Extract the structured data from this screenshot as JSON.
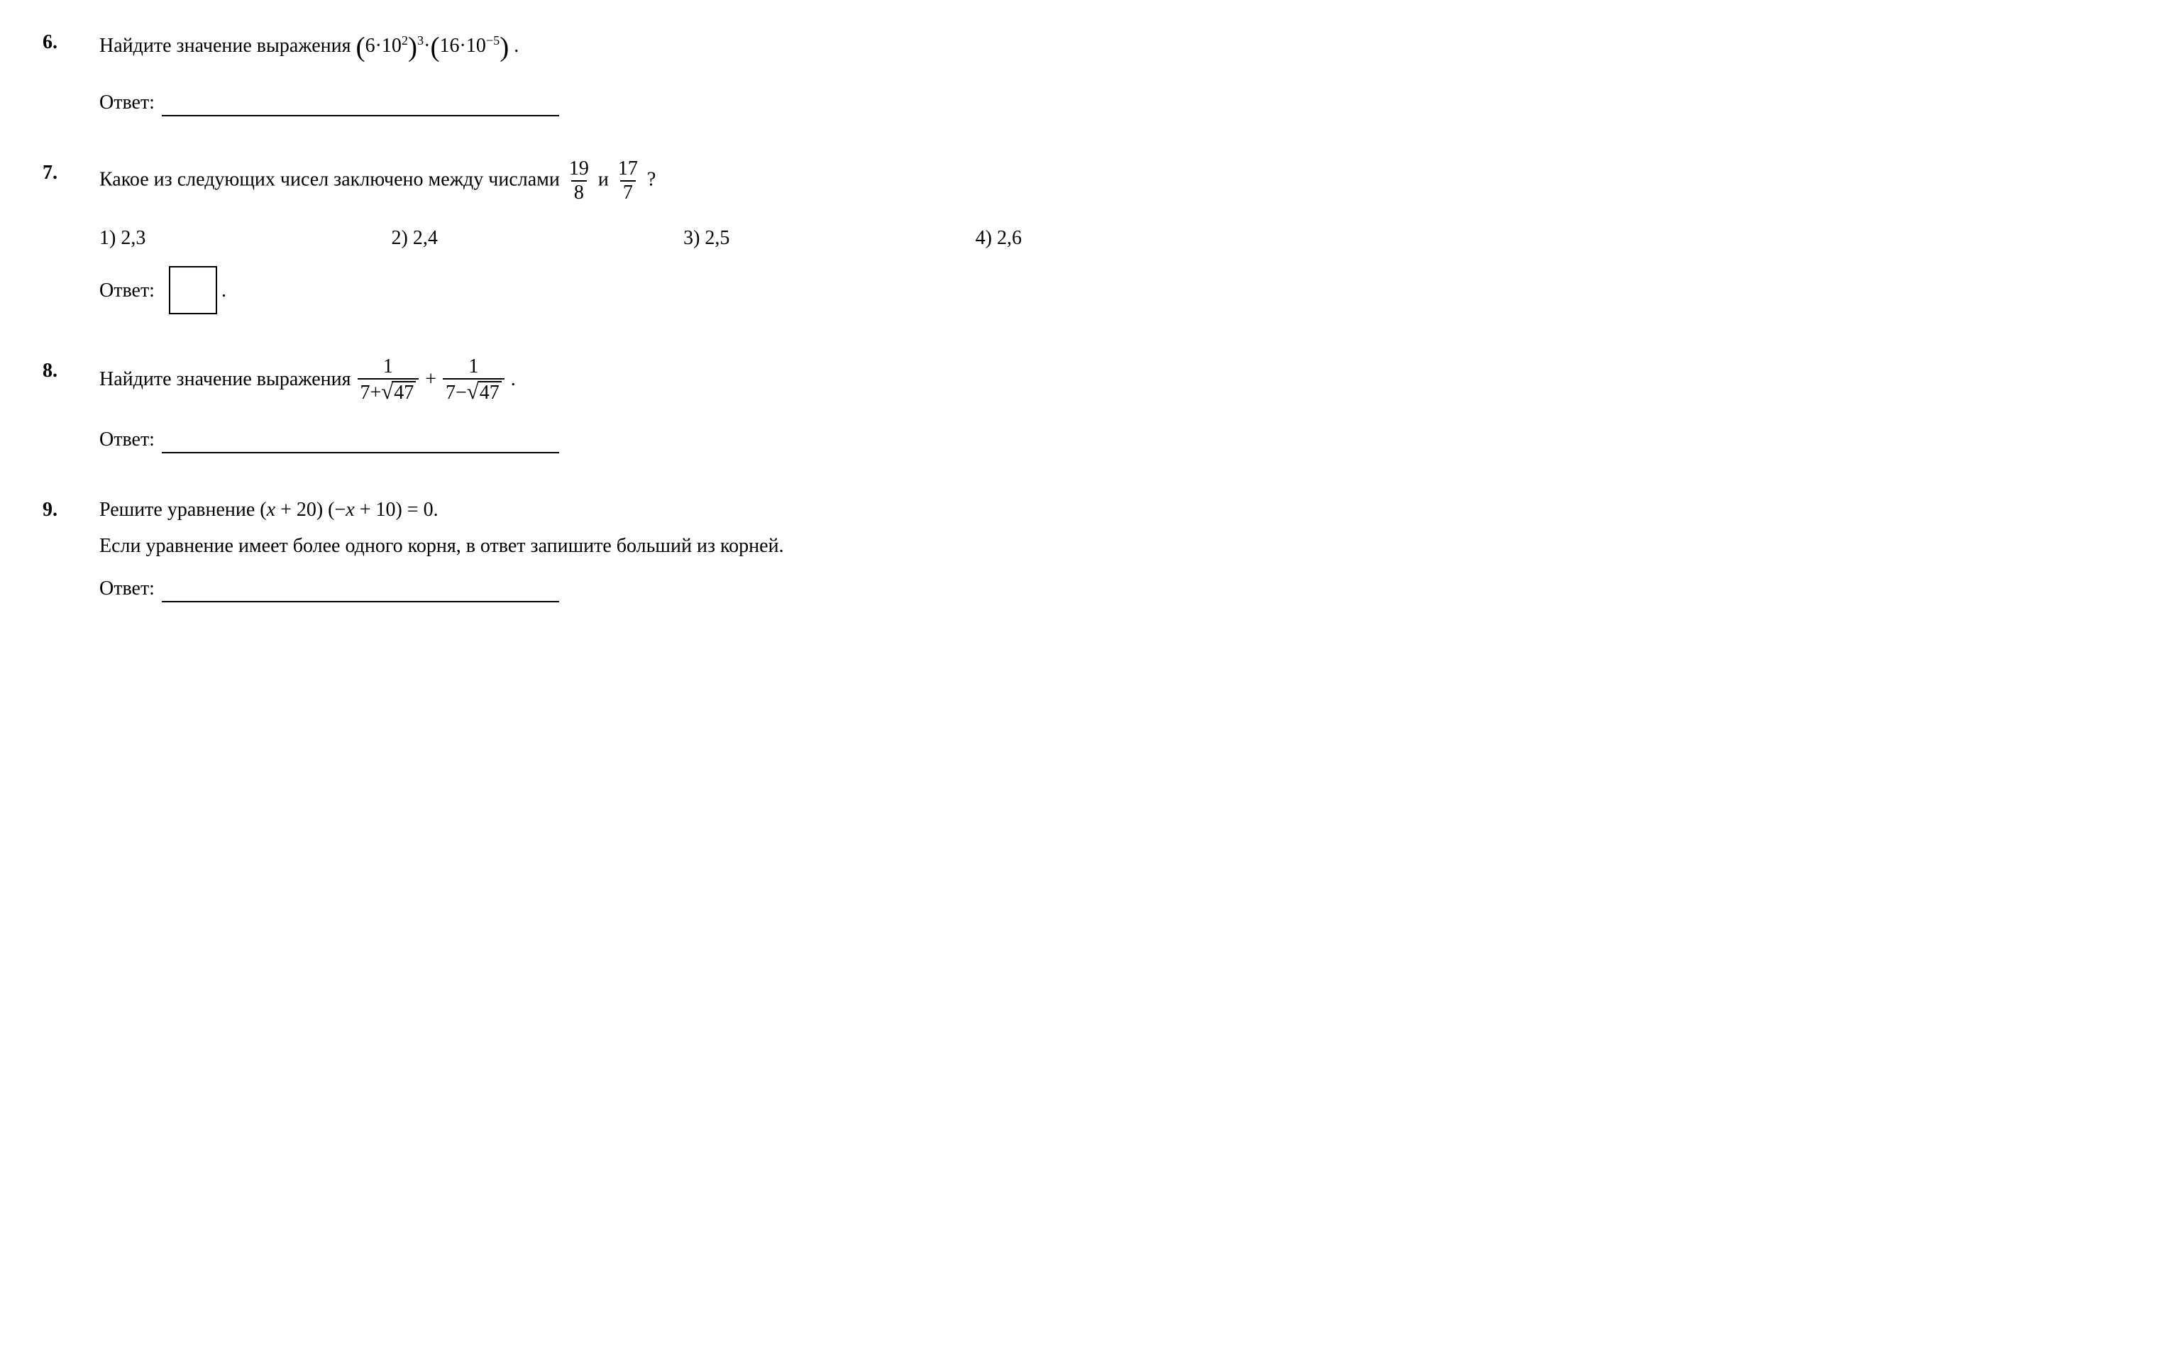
{
  "problems": {
    "p6": {
      "number": "6.",
      "text_before": "Найдите значение выражения ",
      "expr_left_paren": "(",
      "expr_6": "6",
      "expr_dot1": "·",
      "expr_10a": "10",
      "expr_exp2": "2",
      "expr_right_paren": ")",
      "expr_exp3": "3",
      "expr_dot2": "·",
      "expr_left_paren2": "(",
      "expr_16": "16",
      "expr_dot3": "·",
      "expr_10b": "10",
      "expr_expm5": "−5",
      "expr_right_paren2": ")",
      "text_after": " .",
      "answer_label": "Ответ:"
    },
    "p7": {
      "number": "7.",
      "text_before": "Какое из следующих чисел заключено между числами ",
      "frac1_top": "19",
      "frac1_bot": "8",
      "mid_word": " и ",
      "frac2_top": "17",
      "frac2_bot": "7",
      "text_after": " ?",
      "opt1": "1)  2,3",
      "opt2": "2)  2,4",
      "opt3": "3)  2,5",
      "opt4": "4)  2,6",
      "answer_label": "Ответ:",
      "box_after": "."
    },
    "p8": {
      "number": "8.",
      "text_before": "Найдите значение выражения  ",
      "f1_top": "1",
      "f1_bot_a": "7+",
      "f1_bot_rad": "47",
      "plus": " + ",
      "f2_top": "1",
      "f2_bot_a": "7−",
      "f2_bot_rad": "47",
      "text_after": " .",
      "answer_label": "Ответ:"
    },
    "p9": {
      "number": "9.",
      "line1_a": "Решите уравнение (",
      "line1_x1": "x",
      "line1_b": " + 20) (−",
      "line1_x2": "x",
      "line1_c": " + 10) = 0.",
      "line2": "Если уравнение имеет более одного корня, в ответ запишите больший из корней.",
      "answer_label": "Ответ:"
    }
  }
}
